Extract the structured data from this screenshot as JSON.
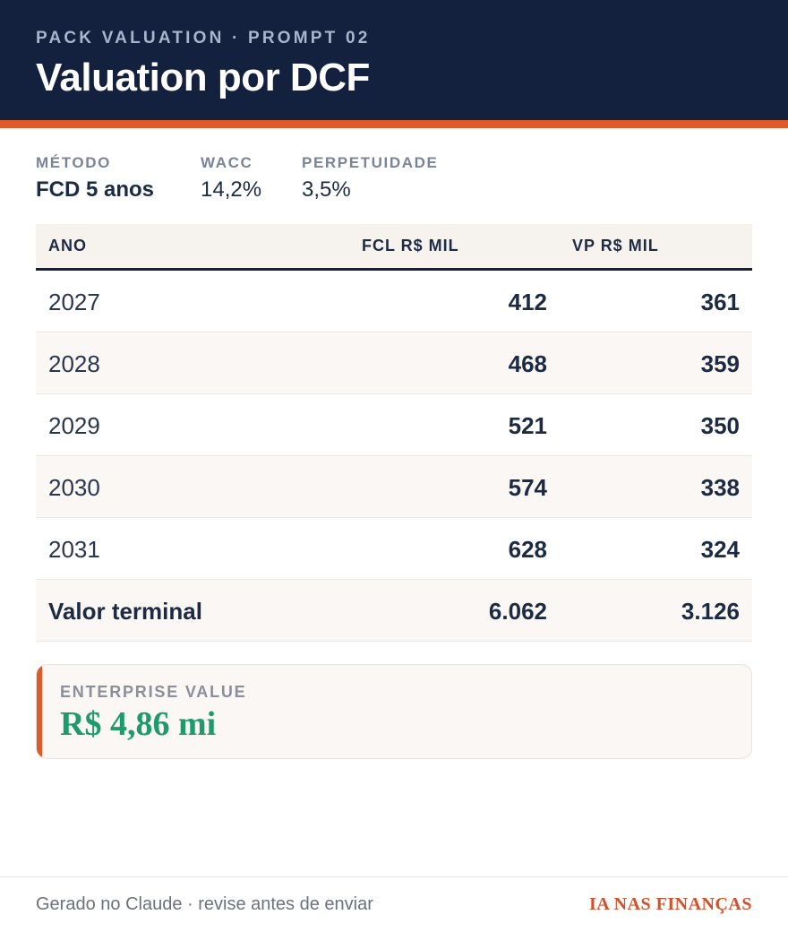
{
  "header": {
    "eyebrow": "PACK VALUATION · PROMPT 02",
    "title": "Valuation por DCF"
  },
  "meta": {
    "method_label": "MÉTODO",
    "method_value": "FCD 5 anos",
    "wacc_label": "WACC",
    "wacc_value": "14,2%",
    "perp_label": "PERPETUIDADE",
    "perp_value": "3,5%"
  },
  "table": {
    "columns": [
      "ANO",
      "FCL R$ MIL",
      "VP R$ MIL"
    ],
    "rows": [
      {
        "year": "2027",
        "fcl": "412",
        "vp": "361"
      },
      {
        "year": "2028",
        "fcl": "468",
        "vp": "359"
      },
      {
        "year": "2029",
        "fcl": "521",
        "vp": "350"
      },
      {
        "year": "2030",
        "fcl": "574",
        "vp": "338"
      },
      {
        "year": "2031",
        "fcl": "628",
        "vp": "324"
      },
      {
        "year": "Valor terminal",
        "fcl": "6.062",
        "vp": "3.126"
      }
    ]
  },
  "enterprise_value": {
    "label": "ENTERPRISE VALUE",
    "value": "R$ 4,86 mi"
  },
  "footer": {
    "left": "Gerado no Claude · revise antes de enviar",
    "brand": "IA NAS FINANÇAS"
  },
  "colors": {
    "navy": "#13213f",
    "accent": "#e0592a",
    "ev_green": "#1f9a6a"
  }
}
